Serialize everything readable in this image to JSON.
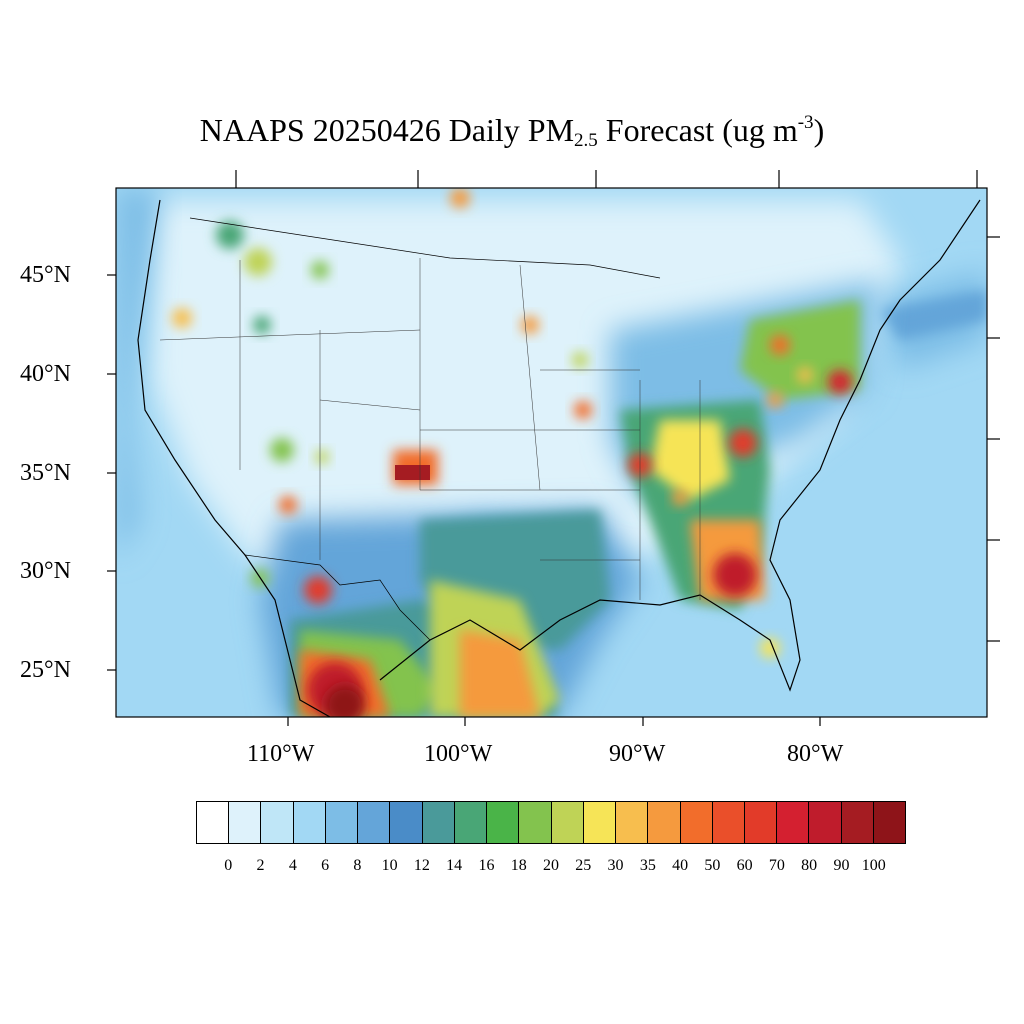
{
  "title": {
    "prefix": "NAAPS 20250426 Daily PM",
    "sub": "2.5",
    "middle": " Forecast (ug m",
    "sup": "-3",
    "suffix": ")"
  },
  "axes": {
    "lat_labels": [
      "45°N",
      "40°N",
      "35°N",
      "30°N",
      "25°N"
    ],
    "lon_labels": [
      "110°W",
      "100°W",
      "90°W",
      "80°W"
    ]
  },
  "colorbar": {
    "colors": [
      "#ffffff",
      "#def2fb",
      "#bfe6f7",
      "#a2d8f4",
      "#7dbde6",
      "#64a5d9",
      "#4a8cc8",
      "#4a9a9a",
      "#49a676",
      "#4ab448",
      "#83c34e",
      "#bfd356",
      "#f6e457",
      "#f7be4e",
      "#f59a3e",
      "#f26d2b",
      "#ea4f2a",
      "#e23b29",
      "#d42030",
      "#bf1c2c",
      "#a51c22",
      "#8e1419"
    ],
    "labels": [
      "0",
      "2",
      "4",
      "6",
      "8",
      "10",
      "12",
      "14",
      "16",
      "18",
      "20",
      "25",
      "30",
      "35",
      "40",
      "50",
      "60",
      "70",
      "80",
      "90",
      "100"
    ]
  },
  "map": {
    "description_free_hotspots": [
      {
        "lat": 35.0,
        "lon": -103.0,
        "level": 19
      },
      {
        "lat": 29.5,
        "lon": -84.5,
        "level": 20
      },
      {
        "lat": 24.0,
        "lon": -106.5,
        "level": 21
      },
      {
        "lat": 29.0,
        "lon": -108.0,
        "level": 18
      },
      {
        "lat": 39.5,
        "lon": -75.0,
        "level": 18
      },
      {
        "lat": 35.5,
        "lon": -89.0,
        "level": 17
      },
      {
        "lat": 36.5,
        "lon": -84.0,
        "level": 16
      },
      {
        "lat": 25.5,
        "lon": -98.0,
        "level": 15
      }
    ]
  }
}
